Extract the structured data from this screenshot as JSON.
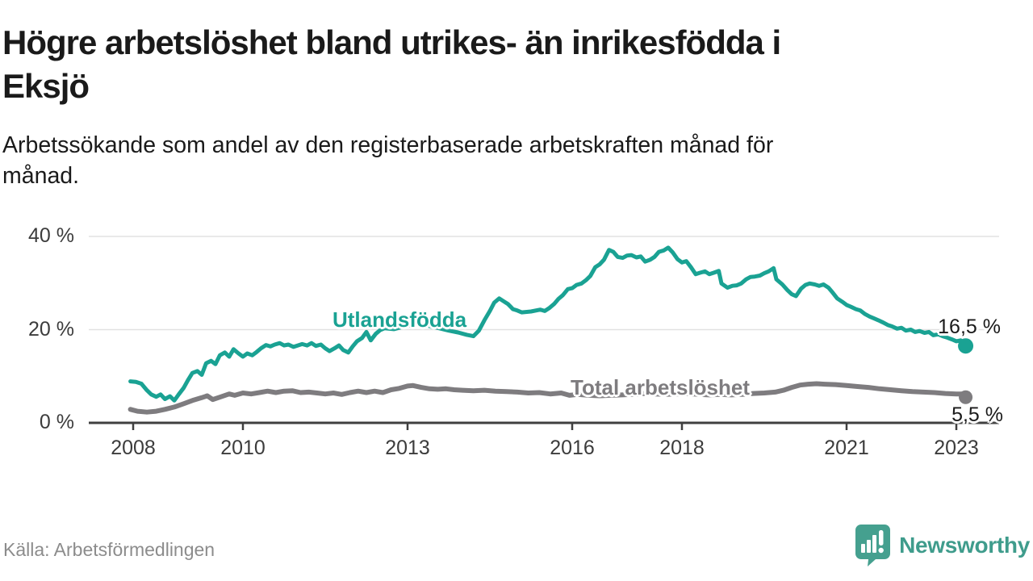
{
  "header": {
    "title": "Högre arbetslöshet bland utrikes- än inrikesfödda i Eksjö",
    "title_lines": [
      "Högre arbetslöshet bland utrikes- än inrikesfödda i",
      "Eksjö"
    ],
    "subtitle": "Arbetssökande som andel av den registerbaserade arbetskraften månad för månad.",
    "subtitle_lines": [
      "Arbetssökande som andel av den registerbaserade arbetskraften månad för",
      "månad."
    ]
  },
  "chart_data": {
    "type": "line",
    "title": "Högre arbetslöshet bland utrikes- än inrikesfödda i Eksjö",
    "subtitle": "Arbetssökande som andel av den registerbaserade arbetskraften månad för månad.",
    "unit": "%",
    "x_range": [
      2007.95,
      2023.4
    ],
    "ylim": [
      0,
      42
    ],
    "grid": "horizontal",
    "legend_position": "inline-labels",
    "y_axis": {
      "ticks": [
        {
          "label": "40 %",
          "value": 40
        },
        {
          "label": "20 %",
          "value": 20
        },
        {
          "label": "0 %",
          "value": 0
        }
      ]
    },
    "x_axis": {
      "ticks": [
        {
          "label": "2008",
          "year": 2008
        },
        {
          "label": "2010",
          "year": 2010
        },
        {
          "label": "2013",
          "year": 2013
        },
        {
          "label": "2016",
          "year": 2016
        },
        {
          "label": "2018",
          "year": 2018
        },
        {
          "label": "2021",
          "year": 2021
        },
        {
          "label": "2023",
          "year": 2023
        }
      ]
    },
    "series": [
      {
        "name": "Utlandsfödda",
        "color": "#1aa293",
        "end_label": "16,5 %",
        "end_value": 16.5,
        "points": [
          [
            2007.95,
            8.9
          ],
          [
            2008.05,
            8.8
          ],
          [
            2008.15,
            8.4
          ],
          [
            2008.25,
            7.0
          ],
          [
            2008.33,
            6.1
          ],
          [
            2008.42,
            5.6
          ],
          [
            2008.5,
            6.1
          ],
          [
            2008.58,
            5.1
          ],
          [
            2008.67,
            5.7
          ],
          [
            2008.75,
            4.8
          ],
          [
            2008.83,
            6.1
          ],
          [
            2008.92,
            7.5
          ],
          [
            2009.0,
            9.2
          ],
          [
            2009.08,
            10.7
          ],
          [
            2009.17,
            11.1
          ],
          [
            2009.25,
            10.3
          ],
          [
            2009.33,
            12.8
          ],
          [
            2009.42,
            13.3
          ],
          [
            2009.5,
            12.6
          ],
          [
            2009.58,
            14.5
          ],
          [
            2009.67,
            15.1
          ],
          [
            2009.75,
            14.2
          ],
          [
            2009.83,
            15.8
          ],
          [
            2009.92,
            14.9
          ],
          [
            2010.0,
            14.2
          ],
          [
            2010.08,
            14.9
          ],
          [
            2010.17,
            14.5
          ],
          [
            2010.25,
            15.2
          ],
          [
            2010.33,
            16.0
          ],
          [
            2010.42,
            16.7
          ],
          [
            2010.5,
            16.4
          ],
          [
            2010.58,
            16.8
          ],
          [
            2010.67,
            17.1
          ],
          [
            2010.75,
            16.6
          ],
          [
            2010.83,
            16.8
          ],
          [
            2010.92,
            16.3
          ],
          [
            2011.0,
            16.6
          ],
          [
            2011.08,
            16.9
          ],
          [
            2011.17,
            16.6
          ],
          [
            2011.25,
            17.1
          ],
          [
            2011.33,
            16.5
          ],
          [
            2011.42,
            16.8
          ],
          [
            2011.5,
            16.0
          ],
          [
            2011.58,
            15.4
          ],
          [
            2011.67,
            16.0
          ],
          [
            2011.75,
            16.6
          ],
          [
            2011.83,
            15.6
          ],
          [
            2011.92,
            15.1
          ],
          [
            2012.0,
            16.4
          ],
          [
            2012.08,
            17.5
          ],
          [
            2012.17,
            18.2
          ],
          [
            2012.25,
            19.5
          ],
          [
            2012.33,
            17.7
          ],
          [
            2012.42,
            19.1
          ],
          [
            2012.5,
            19.9
          ],
          [
            2012.58,
            20.3
          ],
          [
            2012.75,
            20.1
          ],
          [
            2012.92,
            20.6
          ],
          [
            2013.08,
            21.0
          ],
          [
            2013.25,
            21.2
          ],
          [
            2013.42,
            20.7
          ],
          [
            2013.58,
            20.3
          ],
          [
            2013.75,
            19.8
          ],
          [
            2013.92,
            19.4
          ],
          [
            2014.08,
            18.9
          ],
          [
            2014.2,
            18.6
          ],
          [
            2014.3,
            19.8
          ],
          [
            2014.4,
            22.0
          ],
          [
            2014.5,
            24.0
          ],
          [
            2014.58,
            25.8
          ],
          [
            2014.67,
            26.7
          ],
          [
            2014.75,
            26.1
          ],
          [
            2014.83,
            25.5
          ],
          [
            2014.92,
            24.4
          ],
          [
            2015.0,
            24.1
          ],
          [
            2015.08,
            23.7
          ],
          [
            2015.25,
            23.9
          ],
          [
            2015.42,
            24.3
          ],
          [
            2015.5,
            24.0
          ],
          [
            2015.58,
            24.6
          ],
          [
            2015.67,
            25.5
          ],
          [
            2015.75,
            26.6
          ],
          [
            2015.83,
            27.4
          ],
          [
            2015.92,
            28.7
          ],
          [
            2016.0,
            28.9
          ],
          [
            2016.08,
            29.6
          ],
          [
            2016.17,
            29.9
          ],
          [
            2016.25,
            30.6
          ],
          [
            2016.33,
            31.5
          ],
          [
            2016.42,
            33.4
          ],
          [
            2016.5,
            34.0
          ],
          [
            2016.58,
            35.0
          ],
          [
            2016.67,
            37.1
          ],
          [
            2016.75,
            36.7
          ],
          [
            2016.83,
            35.6
          ],
          [
            2016.92,
            35.4
          ],
          [
            2017.0,
            35.9
          ],
          [
            2017.08,
            36.0
          ],
          [
            2017.17,
            35.5
          ],
          [
            2017.25,
            35.7
          ],
          [
            2017.33,
            34.6
          ],
          [
            2017.42,
            35.0
          ],
          [
            2017.5,
            35.6
          ],
          [
            2017.58,
            36.7
          ],
          [
            2017.67,
            37.0
          ],
          [
            2017.75,
            37.6
          ],
          [
            2017.83,
            36.6
          ],
          [
            2017.92,
            35.1
          ],
          [
            2018.0,
            34.4
          ],
          [
            2018.08,
            34.7
          ],
          [
            2018.17,
            33.3
          ],
          [
            2018.25,
            31.9
          ],
          [
            2018.33,
            32.2
          ],
          [
            2018.42,
            32.5
          ],
          [
            2018.5,
            31.9
          ],
          [
            2018.58,
            32.2
          ],
          [
            2018.67,
            32.6
          ],
          [
            2018.72,
            29.9
          ],
          [
            2018.83,
            29.0
          ],
          [
            2018.92,
            29.4
          ],
          [
            2019.0,
            29.5
          ],
          [
            2019.08,
            29.9
          ],
          [
            2019.17,
            30.8
          ],
          [
            2019.25,
            31.3
          ],
          [
            2019.33,
            31.4
          ],
          [
            2019.42,
            31.6
          ],
          [
            2019.5,
            32.1
          ],
          [
            2019.58,
            32.5
          ],
          [
            2019.67,
            33.2
          ],
          [
            2019.72,
            30.8
          ],
          [
            2019.83,
            29.7
          ],
          [
            2019.92,
            28.5
          ],
          [
            2020.0,
            27.6
          ],
          [
            2020.08,
            27.2
          ],
          [
            2020.17,
            28.8
          ],
          [
            2020.25,
            29.6
          ],
          [
            2020.33,
            29.9
          ],
          [
            2020.42,
            29.7
          ],
          [
            2020.5,
            29.4
          ],
          [
            2020.58,
            29.7
          ],
          [
            2020.67,
            29.0
          ],
          [
            2020.75,
            27.9
          ],
          [
            2020.83,
            26.7
          ],
          [
            2020.92,
            26.0
          ],
          [
            2021.0,
            25.3
          ],
          [
            2021.08,
            24.9
          ],
          [
            2021.17,
            24.4
          ],
          [
            2021.25,
            24.1
          ],
          [
            2021.33,
            23.4
          ],
          [
            2021.42,
            22.8
          ],
          [
            2021.5,
            22.4
          ],
          [
            2021.58,
            22.0
          ],
          [
            2021.67,
            21.5
          ],
          [
            2021.75,
            21.0
          ],
          [
            2021.83,
            20.7
          ],
          [
            2021.92,
            20.2
          ],
          [
            2022.0,
            20.4
          ],
          [
            2022.08,
            19.8
          ],
          [
            2022.17,
            20.0
          ],
          [
            2022.25,
            19.5
          ],
          [
            2022.33,
            19.7
          ],
          [
            2022.42,
            19.3
          ],
          [
            2022.5,
            19.5
          ],
          [
            2022.58,
            18.8
          ],
          [
            2022.67,
            19.0
          ],
          [
            2022.75,
            18.6
          ],
          [
            2022.83,
            18.3
          ],
          [
            2022.92,
            17.9
          ],
          [
            2023.0,
            17.5
          ],
          [
            2023.08,
            17.7
          ],
          [
            2023.17,
            16.5
          ]
        ]
      },
      {
        "name": "Total arbetslöshet",
        "color": "#7e7c7f",
        "end_label": "5,5 %",
        "end_value": 5.5,
        "points": [
          [
            2007.95,
            2.9
          ],
          [
            2008.08,
            2.5
          ],
          [
            2008.25,
            2.3
          ],
          [
            2008.42,
            2.5
          ],
          [
            2008.58,
            2.9
          ],
          [
            2008.75,
            3.4
          ],
          [
            2008.92,
            4.1
          ],
          [
            2009.08,
            4.8
          ],
          [
            2009.25,
            5.4
          ],
          [
            2009.35,
            5.8
          ],
          [
            2009.45,
            5.0
          ],
          [
            2009.58,
            5.5
          ],
          [
            2009.75,
            6.2
          ],
          [
            2009.85,
            5.9
          ],
          [
            2010.0,
            6.4
          ],
          [
            2010.15,
            6.2
          ],
          [
            2010.3,
            6.5
          ],
          [
            2010.45,
            6.8
          ],
          [
            2010.6,
            6.5
          ],
          [
            2010.75,
            6.8
          ],
          [
            2010.9,
            6.9
          ],
          [
            2011.05,
            6.5
          ],
          [
            2011.2,
            6.6
          ],
          [
            2011.35,
            6.4
          ],
          [
            2011.5,
            6.2
          ],
          [
            2011.65,
            6.4
          ],
          [
            2011.8,
            6.1
          ],
          [
            2011.95,
            6.5
          ],
          [
            2012.1,
            6.8
          ],
          [
            2012.25,
            6.5
          ],
          [
            2012.4,
            6.8
          ],
          [
            2012.55,
            6.5
          ],
          [
            2012.7,
            7.1
          ],
          [
            2012.85,
            7.4
          ],
          [
            2013.0,
            7.9
          ],
          [
            2013.1,
            8.0
          ],
          [
            2013.25,
            7.6
          ],
          [
            2013.4,
            7.3
          ],
          [
            2013.55,
            7.2
          ],
          [
            2013.7,
            7.3
          ],
          [
            2013.85,
            7.1
          ],
          [
            2014.0,
            7.0
          ],
          [
            2014.2,
            6.9
          ],
          [
            2014.4,
            7.0
          ],
          [
            2014.6,
            6.8
          ],
          [
            2014.8,
            6.7
          ],
          [
            2015.0,
            6.6
          ],
          [
            2015.2,
            6.4
          ],
          [
            2015.4,
            6.5
          ],
          [
            2015.6,
            6.2
          ],
          [
            2015.8,
            6.4
          ],
          [
            2015.95,
            5.9
          ],
          [
            2016.1,
            6.1
          ],
          [
            2016.3,
            5.9
          ],
          [
            2016.5,
            5.8
          ],
          [
            2016.7,
            5.9
          ],
          [
            2016.9,
            6.0
          ],
          [
            2017.1,
            6.1
          ],
          [
            2017.3,
            6.3
          ],
          [
            2017.5,
            6.2
          ],
          [
            2017.7,
            6.1
          ],
          [
            2017.9,
            6.2
          ],
          [
            2018.1,
            6.3
          ],
          [
            2018.3,
            6.1
          ],
          [
            2018.5,
            6.0
          ],
          [
            2018.7,
            6.1
          ],
          [
            2018.9,
            6.0
          ],
          [
            2019.1,
            6.1
          ],
          [
            2019.3,
            6.3
          ],
          [
            2019.5,
            6.4
          ],
          [
            2019.7,
            6.6
          ],
          [
            2019.85,
            7.0
          ],
          [
            2020.0,
            7.6
          ],
          [
            2020.15,
            8.1
          ],
          [
            2020.3,
            8.3
          ],
          [
            2020.45,
            8.4
          ],
          [
            2020.6,
            8.3
          ],
          [
            2020.8,
            8.2
          ],
          [
            2021.0,
            8.0
          ],
          [
            2021.2,
            7.8
          ],
          [
            2021.4,
            7.6
          ],
          [
            2021.6,
            7.3
          ],
          [
            2021.8,
            7.1
          ],
          [
            2022.0,
            6.9
          ],
          [
            2022.2,
            6.7
          ],
          [
            2022.4,
            6.6
          ],
          [
            2022.6,
            6.5
          ],
          [
            2022.8,
            6.3
          ],
          [
            2023.0,
            6.2
          ],
          [
            2023.1,
            6.2
          ],
          [
            2023.17,
            5.5
          ]
        ]
      }
    ]
  },
  "footer": {
    "source": "Källa: Arbetsförmedlingen",
    "brand": "Newsworthy",
    "brand_color": "#3f9c8c"
  }
}
